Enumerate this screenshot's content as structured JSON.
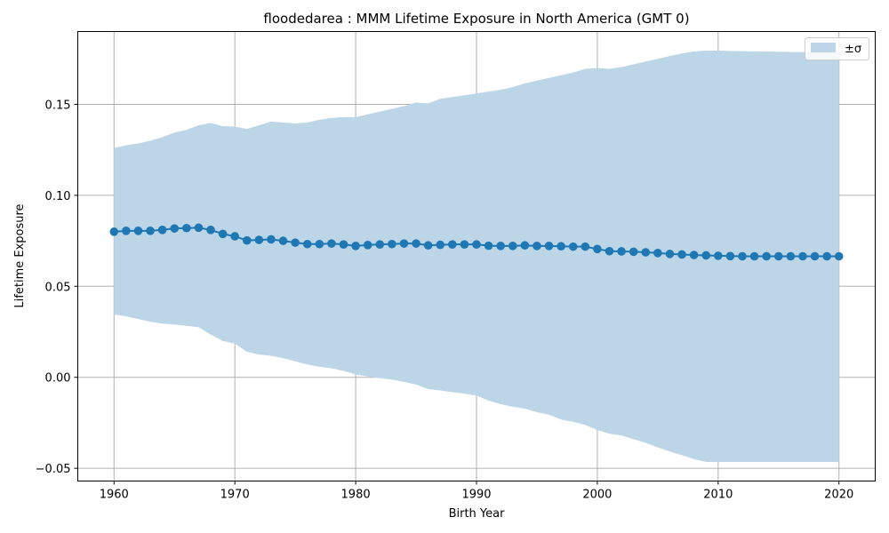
{
  "chart_data": {
    "type": "line",
    "title": "floodedarea : MMM Lifetime Exposure in North America (GMT 0)",
    "xlabel": "Birth Year",
    "ylabel": "Lifetime Exposure",
    "xlim": [
      1957,
      2023
    ],
    "ylim": [
      -0.057,
      0.19
    ],
    "xticks": [
      1960,
      1970,
      1980,
      1990,
      2000,
      2010,
      2020
    ],
    "yticks": [
      -0.05,
      0.0,
      0.05,
      0.1,
      0.15
    ],
    "ytick_labels": [
      "−0.05",
      "0.00",
      "0.05",
      "0.10",
      "0.15"
    ],
    "grid": true,
    "legend": {
      "location": "upper right",
      "entries": [
        "±σ"
      ]
    },
    "colors": {
      "line": "#1f77b4",
      "band": "#bcd6e8",
      "grid": "#b0b0b0"
    },
    "x": [
      1960,
      1961,
      1962,
      1963,
      1964,
      1965,
      1966,
      1967,
      1968,
      1969,
      1970,
      1971,
      1972,
      1973,
      1974,
      1975,
      1976,
      1977,
      1978,
      1979,
      1980,
      1981,
      1982,
      1983,
      1984,
      1985,
      1986,
      1987,
      1988,
      1989,
      1990,
      1991,
      1992,
      1993,
      1994,
      1995,
      1996,
      1997,
      1998,
      1999,
      2000,
      2001,
      2002,
      2003,
      2004,
      2005,
      2006,
      2007,
      2008,
      2009,
      2010,
      2011,
      2012,
      2013,
      2014,
      2015,
      2016,
      2017,
      2018,
      2019,
      2020
    ],
    "series": [
      {
        "values": [
          0.08,
          0.0805,
          0.0805,
          0.0805,
          0.081,
          0.0818,
          0.082,
          0.0822,
          0.081,
          0.0788,
          0.0775,
          0.0752,
          0.0755,
          0.0758,
          0.075,
          0.074,
          0.0732,
          0.0732,
          0.0735,
          0.073,
          0.0722,
          0.0727,
          0.073,
          0.0732,
          0.0735,
          0.0735,
          0.0725,
          0.0728,
          0.073,
          0.073,
          0.073,
          0.0723,
          0.0722,
          0.0722,
          0.0725,
          0.0722,
          0.0722,
          0.072,
          0.0718,
          0.0718,
          0.0705,
          0.0693,
          0.0692,
          0.069,
          0.0687,
          0.0683,
          0.0678,
          0.0675,
          0.0672,
          0.067,
          0.0668,
          0.0666,
          0.0665,
          0.0665,
          0.0665,
          0.0665,
          0.0665,
          0.0665,
          0.0665,
          0.0665,
          0.0665
        ]
      }
    ],
    "band": {
      "name": "±σ",
      "upper": [
        0.126,
        0.1275,
        0.1285,
        0.13,
        0.132,
        0.1345,
        0.136,
        0.1385,
        0.1398,
        0.138,
        0.1378,
        0.1365,
        0.1385,
        0.1405,
        0.14,
        0.1395,
        0.14,
        0.1415,
        0.1425,
        0.143,
        0.143,
        0.1445,
        0.146,
        0.1475,
        0.149,
        0.151,
        0.1505,
        0.153,
        0.154,
        0.155,
        0.156,
        0.157,
        0.158,
        0.1595,
        0.1615,
        0.163,
        0.1645,
        0.166,
        0.1675,
        0.1695,
        0.17,
        0.1695,
        0.1705,
        0.172,
        0.1735,
        0.175,
        0.1765,
        0.178,
        0.179,
        0.1795,
        0.1795,
        0.1793,
        0.1792,
        0.1791,
        0.179,
        0.1789,
        0.1788,
        0.1787,
        0.1786,
        0.1785,
        0.1785
      ],
      "lower": [
        0.0345,
        0.0335,
        0.032,
        0.0305,
        0.0295,
        0.029,
        0.0283,
        0.0275,
        0.0235,
        0.02,
        0.0185,
        0.014,
        0.0125,
        0.0118,
        0.0105,
        0.0088,
        0.007,
        0.0058,
        0.005,
        0.0035,
        0.0015,
        0.0005,
        -0.0005,
        -0.0012,
        -0.0025,
        -0.004,
        -0.0065,
        -0.0072,
        -0.0082,
        -0.009,
        -0.01,
        -0.0128,
        -0.0148,
        -0.0162,
        -0.0172,
        -0.0192,
        -0.0205,
        -0.0232,
        -0.0245,
        -0.0262,
        -0.029,
        -0.031,
        -0.032,
        -0.034,
        -0.036,
        -0.0385,
        -0.0408,
        -0.0428,
        -0.045,
        -0.0465,
        -0.0465,
        -0.0465,
        -0.0465,
        -0.0465,
        -0.0465,
        -0.0465,
        -0.0465,
        -0.0465,
        -0.0465,
        -0.0465,
        -0.0465
      ]
    }
  }
}
